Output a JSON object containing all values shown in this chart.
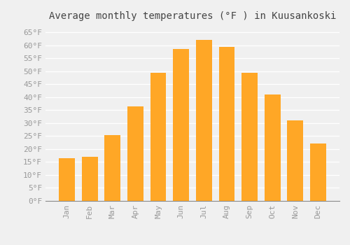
{
  "title": "Average monthly temperatures (°F ) in Kuusankoski",
  "months": [
    "Jan",
    "Feb",
    "Mar",
    "Apr",
    "May",
    "Jun",
    "Jul",
    "Aug",
    "Sep",
    "Oct",
    "Nov",
    "Dec"
  ],
  "values": [
    16.5,
    17.0,
    25.5,
    36.5,
    49.5,
    58.5,
    62.0,
    59.5,
    49.5,
    41.0,
    31.0,
    22.0
  ],
  "bar_color": "#FFA726",
  "ylim": [
    0,
    68
  ],
  "yticks": [
    0,
    5,
    10,
    15,
    20,
    25,
    30,
    35,
    40,
    45,
    50,
    55,
    60,
    65
  ],
  "ytick_labels": [
    "0°F",
    "5°F",
    "10°F",
    "15°F",
    "20°F",
    "25°F",
    "30°F",
    "35°F",
    "40°F",
    "45°F",
    "50°F",
    "55°F",
    "60°F",
    "65°F"
  ],
  "background_color": "#f0f0f0",
  "grid_color": "#ffffff",
  "title_fontsize": 10,
  "tick_fontsize": 8,
  "bar_width": 0.7,
  "tick_color": "#999999",
  "title_color": "#444444"
}
